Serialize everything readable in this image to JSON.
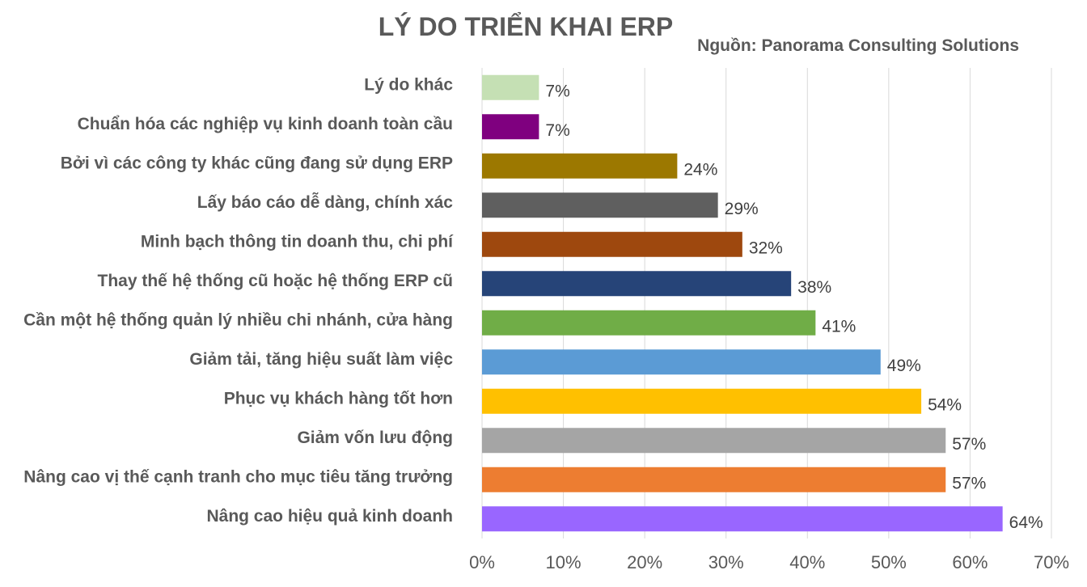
{
  "chart_data": {
    "type": "bar",
    "orientation": "horizontal",
    "title": "LÝ DO TRIỂN KHAI ERP",
    "subtitle": "Nguồn: Panorama Consulting Solutions",
    "categories": [
      "Lý do khác",
      "Chuẩn hóa các nghiệp vụ kinh doanh toàn cầu",
      "Bởi vì các công ty khác cũng đang sử dụng ERP",
      "Lấy báo cáo dễ dàng, chính xác",
      "Minh bạch thông tin doanh thu, chi phí",
      "Thay thế hệ thống cũ hoặc hệ thống ERP cũ",
      "Cần một hệ thống quản lý nhiều chi nhánh, cửa hàng",
      "Giảm tải, tăng hiệu suất làm việc",
      "Phục vụ khách hàng tốt hơn",
      "Giảm vốn lưu động",
      "Nâng cao vị thế cạnh tranh cho mục tiêu tăng trưởng",
      "Nâng cao hiệu quả kinh doanh"
    ],
    "values": [
      7,
      7,
      24,
      29,
      32,
      38,
      41,
      49,
      54,
      57,
      57,
      64
    ],
    "value_labels": [
      "7%",
      "7%",
      "24%",
      "29%",
      "32%",
      "38%",
      "41%",
      "49%",
      "54%",
      "57%",
      "57%",
      "64%"
    ],
    "colors": [
      "#c5e0b4",
      "#7f007f",
      "#9c7800",
      "#5f5f5f",
      "#9e480e",
      "#264478",
      "#70ad47",
      "#5b9bd5",
      "#ffc000",
      "#a5a5a5",
      "#ed7d31",
      "#9966ff"
    ],
    "xlim": [
      0,
      70
    ],
    "xticks": [
      "0%",
      "10%",
      "20%",
      "30%",
      "40%",
      "50%",
      "60%",
      "70%"
    ],
    "xlabel": "",
    "ylabel": "",
    "grid": true,
    "gridline_color": "#d9d9d9"
  }
}
